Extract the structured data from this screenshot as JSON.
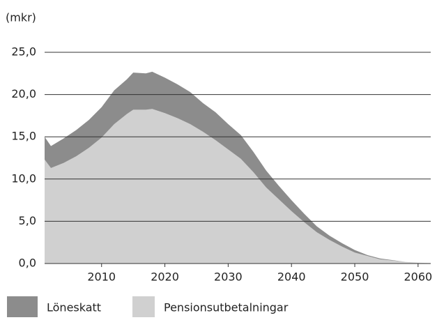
{
  "chart_data": {
    "type": "stacked_area",
    "y_label": "(mkr)",
    "x": [
      2001,
      2002,
      2004,
      2006,
      2008,
      2010,
      2012,
      2014,
      2015,
      2017,
      2018,
      2020,
      2022,
      2024,
      2026,
      2028,
      2030,
      2032,
      2034,
      2036,
      2038,
      2040,
      2042,
      2044,
      2046,
      2048,
      2050,
      2052,
      2054,
      2056,
      2058,
      2060,
      2062
    ],
    "series": [
      {
        "name": "Löneskatt",
        "color": "#8c8c8c",
        "values": [
          2.7,
          2.6,
          2.9,
          3.1,
          3.3,
          3.6,
          4.0,
          4.1,
          4.4,
          4.3,
          4.4,
          4.2,
          4.0,
          3.8,
          3.4,
          3.3,
          3.0,
          2.8,
          2.4,
          2.0,
          1.6,
          1.3,
          1.0,
          0.7,
          0.5,
          0.4,
          0.3,
          0.1,
          0.1,
          0.05,
          0,
          0,
          0
        ]
      },
      {
        "name": "Pensionsutbetalningar",
        "color": "#d0d0d0",
        "values": [
          12.3,
          11.3,
          11.9,
          12.7,
          13.7,
          14.9,
          16.5,
          17.7,
          18.2,
          18.2,
          18.3,
          17.8,
          17.2,
          16.5,
          15.6,
          14.6,
          13.5,
          12.4,
          10.8,
          9.0,
          7.6,
          6.2,
          4.9,
          3.7,
          2.8,
          2.0,
          1.3,
          0.9,
          0.5,
          0.35,
          0.2,
          0.1,
          0.05
        ]
      }
    ],
    "xlim": [
      2001,
      2062
    ],
    "xticks": [
      2010,
      2020,
      2030,
      2040,
      2050,
      2060
    ],
    "ylim": [
      0,
      25
    ],
    "yticks": [
      {
        "value": 0,
        "label": "0,0"
      },
      {
        "value": 5,
        "label": "5,0"
      },
      {
        "value": 10,
        "label": "10,0"
      },
      {
        "value": 15,
        "label": "15,0"
      },
      {
        "value": 20,
        "label": "20,0"
      },
      {
        "value": 25,
        "label": "25,0"
      }
    ],
    "grid": true,
    "legend": "bottom"
  }
}
